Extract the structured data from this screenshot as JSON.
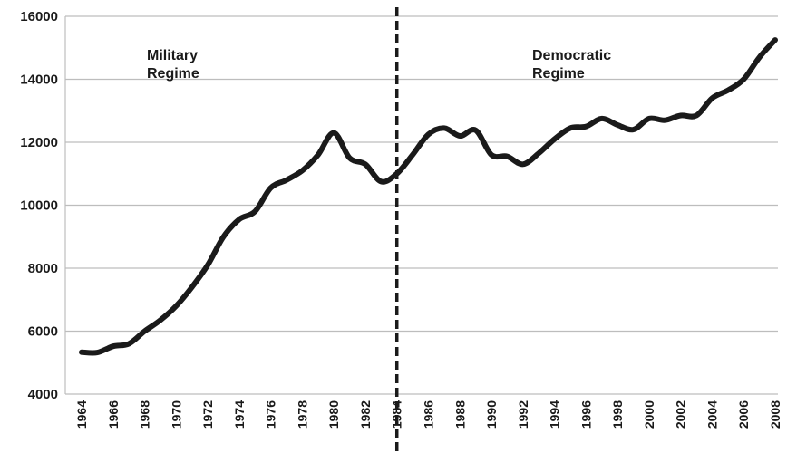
{
  "chart_data": {
    "type": "line",
    "title": "",
    "xlabel": "",
    "ylabel": "",
    "grid": true,
    "legend": "none",
    "ylim": [
      4000,
      16000
    ],
    "yticks": [
      4000,
      6000,
      8000,
      10000,
      12000,
      14000,
      16000
    ],
    "ytick_labels": [
      "4000",
      "6000",
      "8000",
      "10000",
      "12000",
      "14000",
      "16000"
    ],
    "xlim": [
      1964,
      2008
    ],
    "xtick_labels": [
      "1964",
      "1966",
      "1968",
      "1970",
      "1972",
      "1974",
      "1976",
      "1978",
      "1980",
      "1982",
      "1984",
      "1986",
      "1988",
      "1990",
      "1992",
      "1994",
      "1996",
      "1998",
      "2000",
      "2002",
      "2004",
      "2006",
      "2008"
    ],
    "series": [
      {
        "color": "#1a1a1a",
        "x": [
          1964,
          1965,
          1966,
          1967,
          1968,
          1969,
          1970,
          1971,
          1972,
          1973,
          1974,
          1975,
          1976,
          1977,
          1978,
          1979,
          1980,
          1981,
          1982,
          1983,
          1984,
          1985,
          1986,
          1987,
          1988,
          1989,
          1990,
          1991,
          1992,
          1993,
          1994,
          1995,
          1996,
          1997,
          1998,
          1999,
          2000,
          2001,
          2002,
          2003,
          2004,
          2005,
          2006,
          2007,
          2008
        ],
        "values": [
          5330,
          5320,
          5520,
          5600,
          6000,
          6350,
          6800,
          7400,
          8100,
          9000,
          9550,
          9800,
          10550,
          10800,
          11100,
          11600,
          12300,
          11500,
          11300,
          10750,
          11000,
          11600,
          12250,
          12450,
          12200,
          12380,
          11600,
          11550,
          11300,
          11650,
          12100,
          12450,
          12500,
          12750,
          12550,
          12400,
          12750,
          12700,
          12850,
          12850,
          13400,
          13650,
          14000,
          14700,
          15250
        ]
      }
    ],
    "divider": {
      "x": 1984,
      "style": "dashed",
      "color": "#1a1a1a"
    },
    "annotations": [
      {
        "lines": [
          "Military",
          "Regime"
        ]
      },
      {
        "lines": [
          "Democratic",
          "Regime"
        ]
      }
    ]
  }
}
